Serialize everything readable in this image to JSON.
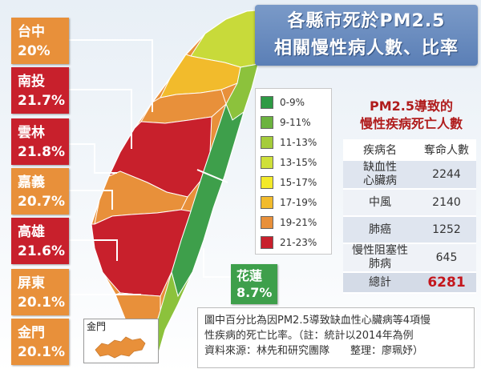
{
  "title": {
    "line1": "各縣市死於PM2.5",
    "line2": "相關慢性病人數、比率"
  },
  "counties": [
    {
      "name": "台中",
      "percent": "20%",
      "color": "#e8903a"
    },
    {
      "name": "南投",
      "percent": "21.7%",
      "color": "#c8202c"
    },
    {
      "name": "雲林",
      "percent": "21.8%",
      "color": "#c8202c"
    },
    {
      "name": "嘉義",
      "percent": "20.7%",
      "color": "#e8903a"
    },
    {
      "name": "高雄",
      "percent": "21.6%",
      "color": "#c8202c"
    },
    {
      "name": "屏東",
      "percent": "20.1%",
      "color": "#e8903a"
    },
    {
      "name": "金門",
      "percent": "20.1%",
      "color": "#e8903a"
    }
  ],
  "hualien": {
    "name": "花蓮",
    "percent": "8.7%",
    "color": "#3e9f4b"
  },
  "legend": [
    {
      "label": "0-9%",
      "color": "#2e9a44"
    },
    {
      "label": "9-11%",
      "color": "#6cb33f"
    },
    {
      "label": "11-13%",
      "color": "#a5cc3a"
    },
    {
      "label": "13-15%",
      "color": "#cfe03a"
    },
    {
      "label": "15-17%",
      "color": "#f3ea2a"
    },
    {
      "label": "17-19%",
      "color": "#f2bb2c"
    },
    {
      "label": "19-21%",
      "color": "#e8903a"
    },
    {
      "label": "21-23%",
      "color": "#c8202c"
    }
  ],
  "table": {
    "title1": "PM2.5導致的",
    "title2": "慢性疾病死亡人數",
    "headers": [
      "疾病名",
      "奪命人數"
    ],
    "rows": [
      {
        "name1": "缺血性",
        "name2": "心臟病",
        "value": "2244"
      },
      {
        "name1": "中風",
        "name2": "",
        "value": "2140"
      },
      {
        "name1": "肺癌",
        "name2": "",
        "value": "1252"
      },
      {
        "name1": "慢性阻塞性",
        "name2": "肺病",
        "value": "645"
      }
    ],
    "total_label": "總計",
    "total_value": "6281"
  },
  "note": {
    "line1": "圖中百分比為因PM2.5導致缺血性心臟病等4項慢",
    "line2": "性疾病的死亡比率。（註：統計以2014年為例",
    "line3": "資料來源：林先和研究團隊　　整理：廖珮妤）"
  },
  "kinmen_label": "金門"
}
